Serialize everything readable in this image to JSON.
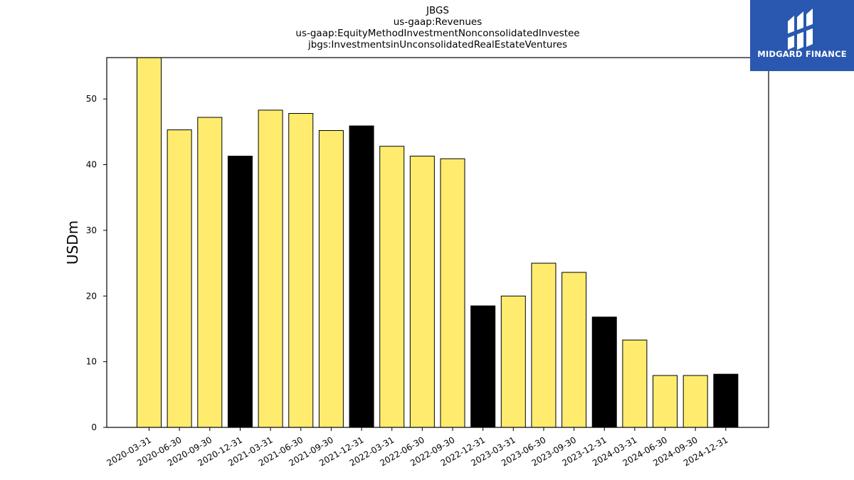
{
  "brand": {
    "name": "MIDGARD FINANCE",
    "icon": "midgard-finance-logo-icon",
    "background": "#2a58b0"
  },
  "chart_data": {
    "type": "bar",
    "title": "JBGS",
    "subtitle_lines": [
      "us-gaap:Revenues",
      "us-gaap:EquityMethodInvestmentNonconsolidatedInvestee",
      "jbgs:InvestmentsinUnconsolidatedRealEstateVentures"
    ],
    "ylabel": "USDm",
    "xlabel": "",
    "ylim": [
      0,
      56.3
    ],
    "yticks": [
      0,
      10,
      20,
      30,
      40,
      50
    ],
    "grid": false,
    "categories": [
      "2020-03-31",
      "2020-06-30",
      "2020-09-30",
      "2020-12-31",
      "2021-03-31",
      "2021-06-30",
      "2021-09-30",
      "2021-12-31",
      "2022-03-31",
      "2022-06-30",
      "2022-09-30",
      "2022-12-31",
      "2023-03-31",
      "2023-06-30",
      "2023-09-30",
      "2023-12-31",
      "2024-03-31",
      "2024-06-30",
      "2024-09-30",
      "2024-12-31"
    ],
    "values": [
      56.3,
      45.3,
      47.2,
      41.3,
      48.3,
      47.8,
      45.2,
      45.9,
      42.8,
      41.3,
      40.9,
      18.5,
      20.0,
      25.0,
      23.6,
      16.8,
      13.3,
      7.9,
      7.9,
      8.1
    ],
    "colors": {
      "quarter": "#ffec6e",
      "year_end": "#000000",
      "edge": "#000000"
    }
  }
}
